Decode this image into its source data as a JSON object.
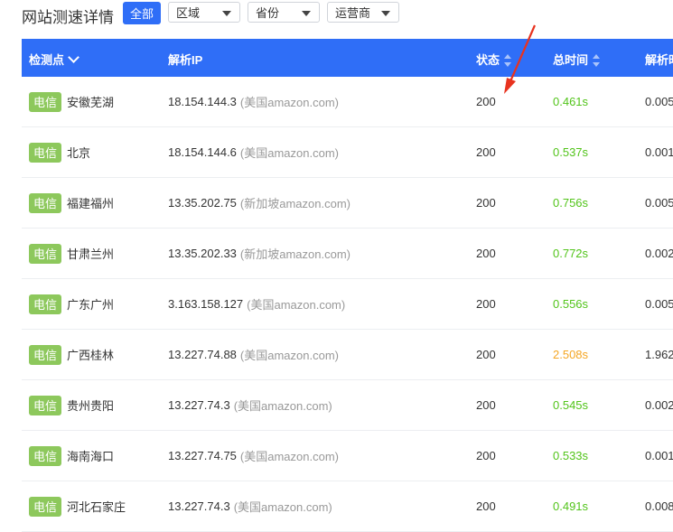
{
  "header": {
    "title": "网站测速详情",
    "all_button": "全部",
    "filters": [
      "区域",
      "省份",
      "运营商"
    ]
  },
  "table": {
    "columns": [
      "检测点",
      "解析IP",
      "状态",
      "总时间",
      "解析时"
    ],
    "rows": [
      {
        "isp": "电信",
        "location": "安徽芜湖",
        "ip": "18.154.144.3",
        "ip_note": "(美国amazon.com)",
        "status": "200",
        "total_time": "0.461s",
        "time_color": "green",
        "resolve": "0.005"
      },
      {
        "isp": "电信",
        "location": "北京",
        "ip": "18.154.144.6",
        "ip_note": "(美国amazon.com)",
        "status": "200",
        "total_time": "0.537s",
        "time_color": "green",
        "resolve": "0.001"
      },
      {
        "isp": "电信",
        "location": "福建福州",
        "ip": "13.35.202.75",
        "ip_note": "(新加坡amazon.com)",
        "status": "200",
        "total_time": "0.756s",
        "time_color": "green",
        "resolve": "0.005"
      },
      {
        "isp": "电信",
        "location": "甘肃兰州",
        "ip": "13.35.202.33",
        "ip_note": "(新加坡amazon.com)",
        "status": "200",
        "total_time": "0.772s",
        "time_color": "green",
        "resolve": "0.002"
      },
      {
        "isp": "电信",
        "location": "广东广州",
        "ip": "3.163.158.127",
        "ip_note": "(美国amazon.com)",
        "status": "200",
        "total_time": "0.556s",
        "time_color": "green",
        "resolve": "0.005"
      },
      {
        "isp": "电信",
        "location": "广西桂林",
        "ip": "13.227.74.88",
        "ip_note": "(美国amazon.com)",
        "status": "200",
        "total_time": "2.508s",
        "time_color": "orange",
        "resolve": "1.962"
      },
      {
        "isp": "电信",
        "location": "贵州贵阳",
        "ip": "13.227.74.3",
        "ip_note": "(美国amazon.com)",
        "status": "200",
        "total_time": "0.545s",
        "time_color": "green",
        "resolve": "0.002"
      },
      {
        "isp": "电信",
        "location": "海南海口",
        "ip": "13.227.74.75",
        "ip_note": "(美国amazon.com)",
        "status": "200",
        "total_time": "0.533s",
        "time_color": "green",
        "resolve": "0.001"
      },
      {
        "isp": "电信",
        "location": "河北石家庄",
        "ip": "13.227.74.3",
        "ip_note": "(美国amazon.com)",
        "status": "200",
        "total_time": "0.491s",
        "time_color": "green",
        "resolve": "0.008"
      }
    ]
  },
  "colors": {
    "primary": "#2f6ef7",
    "badge": "#8dc85c",
    "time_green": "#52c41a",
    "time_orange": "#f5a623",
    "annotation_arrow": "#e8331f"
  },
  "annotation": "red-arrow-pointing-to-status"
}
